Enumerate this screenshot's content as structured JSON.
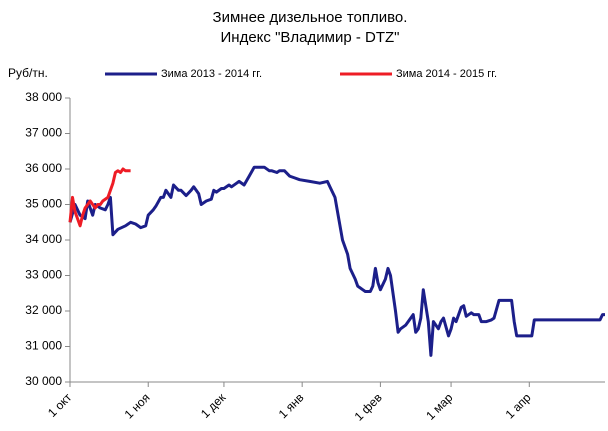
{
  "chart_data": {
    "type": "line",
    "title": [
      "Зимнее дизельное топливо.",
      "Индекс \"Владимир - DTZ\""
    ],
    "y_label": "Руб/тн.",
    "xlim": [
      0,
      212
    ],
    "xticks": [
      {
        "value": 0,
        "label": "1 окт"
      },
      {
        "value": 31,
        "label": "1 ноя"
      },
      {
        "value": 61,
        "label": "1 дек"
      },
      {
        "value": 92,
        "label": "1 янв"
      },
      {
        "value": 123,
        "label": "1 фев"
      },
      {
        "value": 151,
        "label": "1 мар"
      },
      {
        "value": 182,
        "label": "1 апр"
      }
    ],
    "ylim": [
      30000,
      38000
    ],
    "yticks": [
      {
        "value": 30000,
        "label": "30 000"
      },
      {
        "value": 31000,
        "label": "31 000"
      },
      {
        "value": 32000,
        "label": "32 000"
      },
      {
        "value": 33000,
        "label": "33 000"
      },
      {
        "value": 34000,
        "label": "34 000"
      },
      {
        "value": 35000,
        "label": "35 000"
      },
      {
        "value": 36000,
        "label": "36 000"
      },
      {
        "value": 37000,
        "label": "37 000"
      },
      {
        "value": 38000,
        "label": "38 000"
      }
    ],
    "series": [
      {
        "name": "Зима 2013 - 2014 гг.",
        "color": "#1c1f8a",
        "x": [
          0,
          2,
          4,
          6,
          7,
          9,
          10,
          12,
          14,
          15,
          16,
          17,
          19,
          22,
          24,
          26,
          28,
          30,
          31,
          33,
          34,
          36,
          37,
          38,
          40,
          41,
          43,
          44,
          46,
          48,
          49,
          51,
          52,
          54,
          56,
          57,
          58,
          60,
          61,
          63,
          64,
          66,
          67,
          69,
          71,
          73,
          75,
          77,
          79,
          80,
          82,
          83,
          85,
          87,
          89,
          91,
          95,
          99,
          102,
          103,
          105,
          106,
          108,
          110,
          111,
          113,
          114,
          116,
          117,
          119,
          120,
          121,
          122,
          123,
          125,
          126,
          127,
          128,
          129,
          130,
          131,
          133,
          134,
          136,
          137,
          138,
          139,
          140,
          142,
          143,
          144,
          146,
          147,
          148,
          150,
          151,
          152,
          153,
          155,
          156,
          157,
          159,
          160,
          162,
          163,
          165,
          167,
          168,
          170,
          173,
          175,
          176,
          177,
          179,
          181,
          183,
          184,
          188,
          194,
          202,
          210,
          211,
          212
        ],
        "values": [
          34500,
          35000,
          34700,
          34600,
          35100,
          34700,
          35000,
          34900,
          34850,
          35000,
          35200,
          34150,
          34300,
          34400,
          34500,
          34450,
          34350,
          34400,
          34700,
          34850,
          34950,
          35200,
          35200,
          35400,
          35200,
          35550,
          35400,
          35400,
          35250,
          35400,
          35500,
          35300,
          35000,
          35100,
          35150,
          35400,
          35350,
          35450,
          35450,
          35550,
          35500,
          35600,
          35650,
          35550,
          35800,
          36050,
          36050,
          36050,
          35950,
          35950,
          35900,
          35950,
          35950,
          35800,
          35750,
          35700,
          35650,
          35600,
          35650,
          35500,
          35200,
          34800,
          34000,
          33600,
          33200,
          32900,
          32700,
          32600,
          32550,
          32550,
          32700,
          33200,
          32800,
          32600,
          32900,
          33200,
          33000,
          32500,
          32000,
          31400,
          31500,
          31600,
          31700,
          31900,
          31400,
          31500,
          31800,
          32600,
          31700,
          30750,
          31700,
          31500,
          31700,
          31800,
          31300,
          31500,
          31800,
          31700,
          32100,
          32150,
          31850,
          31950,
          31900,
          31900,
          31700,
          31700,
          31750,
          31800,
          32300,
          32300,
          32300,
          31700,
          31300,
          31300,
          31300,
          31300,
          31750,
          31750,
          31750,
          31750,
          31750,
          31900,
          31900
        ]
      },
      {
        "name": "Зима 2014 - 2015 гг.",
        "color": "#ee1c25",
        "x": [
          0,
          1,
          2,
          4,
          5,
          6,
          7,
          8,
          10,
          11,
          12,
          13,
          15,
          17,
          18,
          19,
          20,
          21,
          22,
          24
        ],
        "values": [
          34500,
          35200,
          34800,
          34400,
          34700,
          34900,
          35000,
          35100,
          34900,
          35000,
          35000,
          35100,
          35200,
          35600,
          35900,
          35950,
          35900,
          36000,
          35950,
          35950
        ]
      }
    ]
  }
}
